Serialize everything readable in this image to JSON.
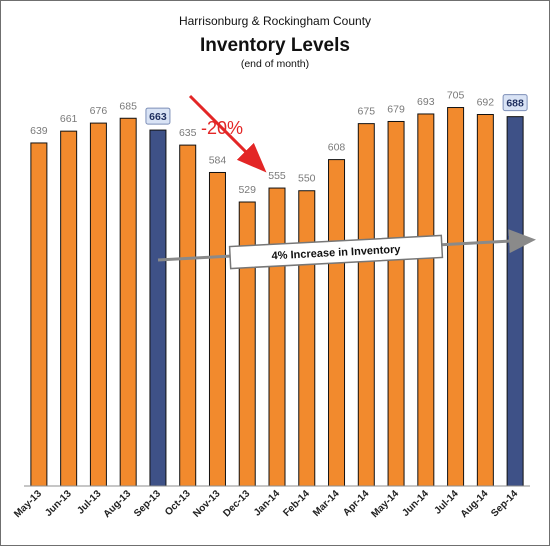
{
  "chart_data": {
    "type": "bar",
    "title_line1": "Harrisonburg & Rockingham County",
    "title": "Inventory Levels",
    "subtitle": "(end of month)",
    "xlabel": "",
    "ylabel": "",
    "grid": false,
    "ylim": [
      0,
      760
    ],
    "categories": [
      "May-13",
      "Jun-13",
      "Jul-13",
      "Aug-13",
      "Sep-13",
      "Oct-13",
      "Nov-13",
      "Dec-13",
      "Jan-14",
      "Feb-14",
      "Mar-14",
      "Apr-14",
      "May-14",
      "Jun-14",
      "Jul-14",
      "Aug-14",
      "Sep-14"
    ],
    "values": [
      639,
      661,
      676,
      685,
      663,
      635,
      584,
      529,
      555,
      550,
      608,
      675,
      679,
      693,
      705,
      692,
      688
    ],
    "highlight_categories": [
      "Sep-13",
      "Sep-14"
    ],
    "colors": {
      "bar": "#f28a2d",
      "highlight_bar": "#3e5187",
      "annotation_red": "#e32626",
      "trend_arrow": "#8a8a8a"
    },
    "annotations": {
      "decline_label": "-20%",
      "trend_label": "4% Increase in Inventory"
    }
  }
}
